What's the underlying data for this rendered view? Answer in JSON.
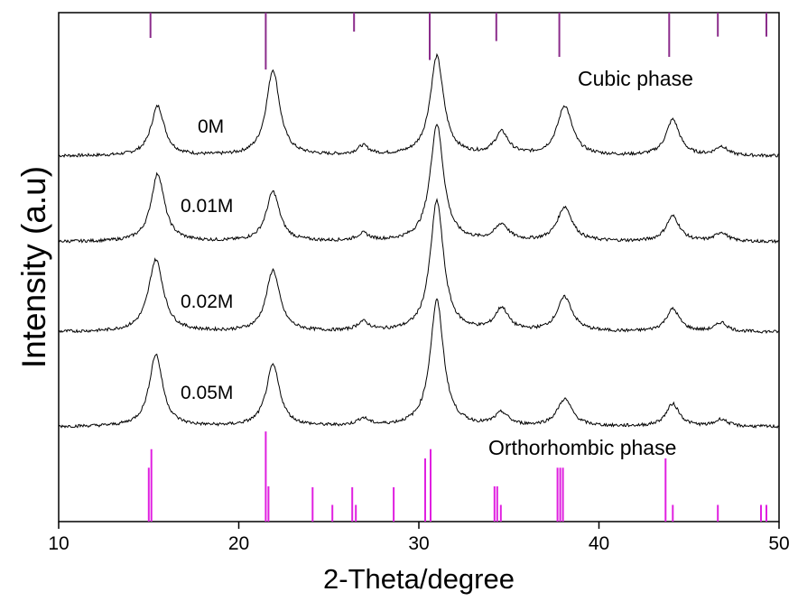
{
  "chart_data": {
    "type": "line",
    "title": "",
    "xlabel": "2-Theta/degree",
    "ylabel": "Intensity (a.u)",
    "xlim": [
      10,
      50
    ],
    "xticks": [
      10,
      20,
      30,
      40,
      50
    ],
    "yticks": "none",
    "grid": false,
    "series": [
      {
        "name": "0M",
        "offset": 3.0,
        "peaks": [
          {
            "x": 15.5,
            "h": 0.55,
            "w": 0.45
          },
          {
            "x": 21.9,
            "h": 0.95,
            "w": 0.45
          },
          {
            "x": 26.9,
            "h": 0.1,
            "w": 0.4
          },
          {
            "x": 31.0,
            "h": 1.1,
            "w": 0.45
          },
          {
            "x": 34.6,
            "h": 0.25,
            "w": 0.45
          },
          {
            "x": 38.1,
            "h": 0.55,
            "w": 0.5
          },
          {
            "x": 44.1,
            "h": 0.4,
            "w": 0.45
          },
          {
            "x": 46.8,
            "h": 0.1,
            "w": 0.4
          }
        ]
      },
      {
        "name": "0.01M",
        "offset": 2.05,
        "peaks": [
          {
            "x": 15.5,
            "h": 0.75,
            "w": 0.45
          },
          {
            "x": 21.9,
            "h": 0.55,
            "w": 0.45
          },
          {
            "x": 26.9,
            "h": 0.08,
            "w": 0.4
          },
          {
            "x": 31.0,
            "h": 1.3,
            "w": 0.45
          },
          {
            "x": 34.6,
            "h": 0.18,
            "w": 0.45
          },
          {
            "x": 38.1,
            "h": 0.38,
            "w": 0.5
          },
          {
            "x": 44.1,
            "h": 0.28,
            "w": 0.45
          },
          {
            "x": 46.8,
            "h": 0.1,
            "w": 0.4
          }
        ]
      },
      {
        "name": "0.02M",
        "offset": 1.05,
        "peaks": [
          {
            "x": 15.4,
            "h": 0.8,
            "w": 0.5
          },
          {
            "x": 21.9,
            "h": 0.68,
            "w": 0.45
          },
          {
            "x": 26.9,
            "h": 0.1,
            "w": 0.4
          },
          {
            "x": 31.0,
            "h": 1.45,
            "w": 0.45
          },
          {
            "x": 34.6,
            "h": 0.25,
            "w": 0.45
          },
          {
            "x": 38.1,
            "h": 0.38,
            "w": 0.5
          },
          {
            "x": 44.1,
            "h": 0.25,
            "w": 0.45
          },
          {
            "x": 46.8,
            "h": 0.1,
            "w": 0.4
          }
        ]
      },
      {
        "name": "0.05M",
        "offset": 0.0,
        "peaks": [
          {
            "x": 15.4,
            "h": 0.8,
            "w": 0.45
          },
          {
            "x": 21.9,
            "h": 0.68,
            "w": 0.45
          },
          {
            "x": 26.9,
            "h": 0.08,
            "w": 0.4
          },
          {
            "x": 31.0,
            "h": 1.4,
            "w": 0.45
          },
          {
            "x": 34.6,
            "h": 0.14,
            "w": 0.45
          },
          {
            "x": 38.1,
            "h": 0.3,
            "w": 0.5
          },
          {
            "x": 44.1,
            "h": 0.25,
            "w": 0.45
          },
          {
            "x": 46.8,
            "h": 0.08,
            "w": 0.4
          }
        ]
      }
    ],
    "reference_patterns": [
      {
        "name": "Cubic phase",
        "color": "#8B2C8B",
        "lines": [
          {
            "x": 15.1,
            "h": 0.4
          },
          {
            "x": 21.5,
            "h": 0.9
          },
          {
            "x": 26.4,
            "h": 0.3
          },
          {
            "x": 30.6,
            "h": 0.75
          },
          {
            "x": 34.3,
            "h": 0.45
          },
          {
            "x": 37.8,
            "h": 0.7
          },
          {
            "x": 43.9,
            "h": 0.7
          },
          {
            "x": 46.6,
            "h": 0.38
          },
          {
            "x": 49.3,
            "h": 0.38
          }
        ]
      },
      {
        "name": "Orthorhombic phase",
        "color": "#E020E0",
        "lines": [
          {
            "x": 15.0,
            "h": 0.58
          },
          {
            "x": 15.15,
            "h": 0.78
          },
          {
            "x": 21.5,
            "h": 0.97
          },
          {
            "x": 21.65,
            "h": 0.38
          },
          {
            "x": 24.1,
            "h": 0.37
          },
          {
            "x": 25.2,
            "h": 0.18
          },
          {
            "x": 26.3,
            "h": 0.37
          },
          {
            "x": 26.5,
            "h": 0.18
          },
          {
            "x": 28.6,
            "h": 0.37
          },
          {
            "x": 30.35,
            "h": 0.68
          },
          {
            "x": 30.65,
            "h": 0.78
          },
          {
            "x": 34.2,
            "h": 0.38
          },
          {
            "x": 34.35,
            "h": 0.38
          },
          {
            "x": 34.55,
            "h": 0.18
          },
          {
            "x": 37.7,
            "h": 0.58
          },
          {
            "x": 37.85,
            "h": 0.58
          },
          {
            "x": 38.0,
            "h": 0.58
          },
          {
            "x": 43.7,
            "h": 0.68
          },
          {
            "x": 44.1,
            "h": 0.18
          },
          {
            "x": 46.6,
            "h": 0.18
          },
          {
            "x": 49.0,
            "h": 0.18
          },
          {
            "x": 49.3,
            "h": 0.18
          }
        ]
      }
    ]
  }
}
